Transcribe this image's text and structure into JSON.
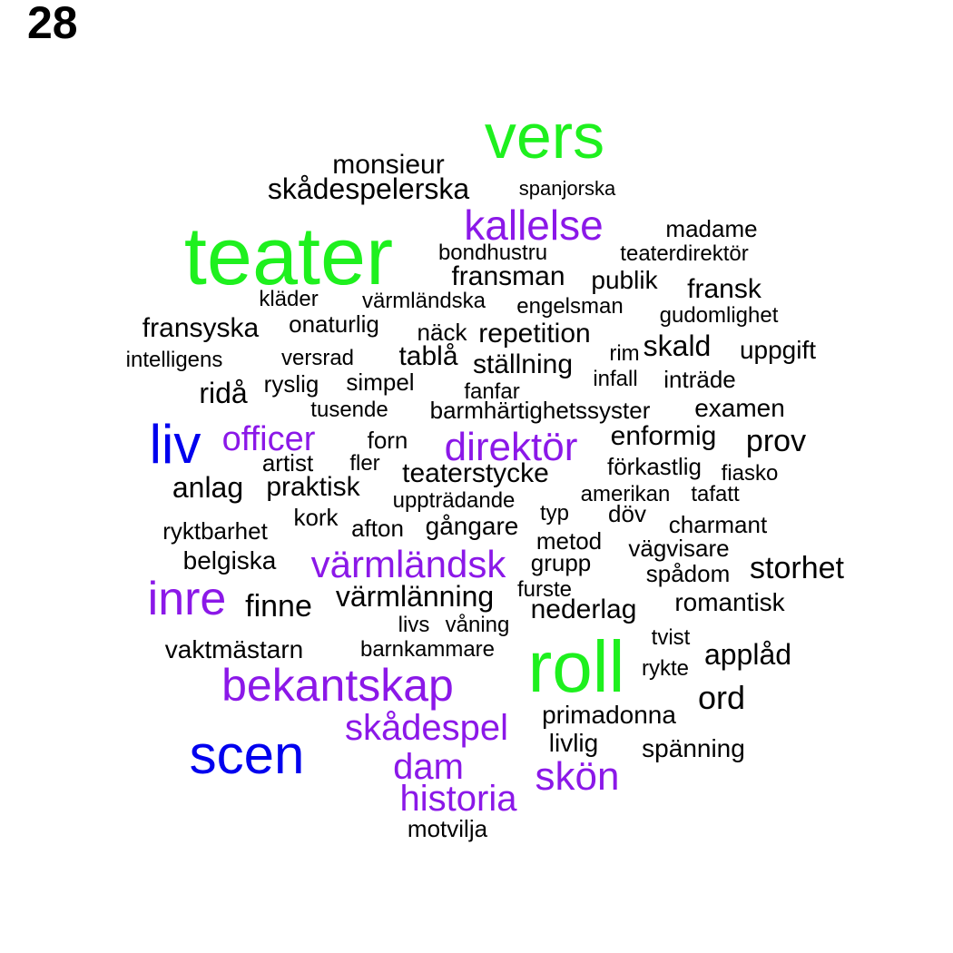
{
  "panel_number": "28",
  "colors": {
    "tier1": "#1ef01e",
    "tier2": "#0000ee",
    "tier3": "#8b18e8",
    "tier4": "#000000"
  },
  "words": [
    {
      "text": "vers",
      "tier": 1
    },
    {
      "text": "teater",
      "tier": 1
    },
    {
      "text": "roll",
      "tier": 1
    },
    {
      "text": "liv",
      "tier": 2
    },
    {
      "text": "scen",
      "tier": 2
    },
    {
      "text": "kallelse",
      "tier": 3
    },
    {
      "text": "officer",
      "tier": 3
    },
    {
      "text": "direktör",
      "tier": 3
    },
    {
      "text": "värmländsk",
      "tier": 3
    },
    {
      "text": "inre",
      "tier": 3
    },
    {
      "text": "bekantskap",
      "tier": 3
    },
    {
      "text": "skådespel",
      "tier": 3
    },
    {
      "text": "dam",
      "tier": 3
    },
    {
      "text": "skön",
      "tier": 3
    },
    {
      "text": "historia",
      "tier": 3
    },
    {
      "text": "monsieur",
      "tier": 4
    },
    {
      "text": "skådespelerska",
      "tier": 4
    },
    {
      "text": "spanjorska",
      "tier": 4
    },
    {
      "text": "madame",
      "tier": 4
    },
    {
      "text": "bondhustru",
      "tier": 4
    },
    {
      "text": "teaterdirektör",
      "tier": 4
    },
    {
      "text": "fransman",
      "tier": 4
    },
    {
      "text": "publik",
      "tier": 4
    },
    {
      "text": "fransk",
      "tier": 4
    },
    {
      "text": "kläder",
      "tier": 4
    },
    {
      "text": "värmländska",
      "tier": 4
    },
    {
      "text": "engelsman",
      "tier": 4
    },
    {
      "text": "gudomlighet",
      "tier": 4
    },
    {
      "text": "fransyska",
      "tier": 4
    },
    {
      "text": "onaturlig",
      "tier": 4
    },
    {
      "text": "näck",
      "tier": 4
    },
    {
      "text": "repetition",
      "tier": 4
    },
    {
      "text": "skald",
      "tier": 4
    },
    {
      "text": "uppgift",
      "tier": 4
    },
    {
      "text": "intelligens",
      "tier": 4
    },
    {
      "text": "versrad",
      "tier": 4
    },
    {
      "text": "tablå",
      "tier": 4
    },
    {
      "text": "ställning",
      "tier": 4
    },
    {
      "text": "rim",
      "tier": 4
    },
    {
      "text": "infall",
      "tier": 4
    },
    {
      "text": "inträde",
      "tier": 4
    },
    {
      "text": "ridå",
      "tier": 4
    },
    {
      "text": "ryslig",
      "tier": 4
    },
    {
      "text": "simpel",
      "tier": 4
    },
    {
      "text": "fanfar",
      "tier": 4
    },
    {
      "text": "tusende",
      "tier": 4
    },
    {
      "text": "barmhärtighetssyster",
      "tier": 4
    },
    {
      "text": "examen",
      "tier": 4
    },
    {
      "text": "forn",
      "tier": 4
    },
    {
      "text": "enformig",
      "tier": 4
    },
    {
      "text": "prov",
      "tier": 4
    },
    {
      "text": "artist",
      "tier": 4
    },
    {
      "text": "fler",
      "tier": 4
    },
    {
      "text": "teaterstycke",
      "tier": 4
    },
    {
      "text": "förkastlig",
      "tier": 4
    },
    {
      "text": "fiasko",
      "tier": 4
    },
    {
      "text": "anlag",
      "tier": 4
    },
    {
      "text": "praktisk",
      "tier": 4
    },
    {
      "text": "uppträdande",
      "tier": 4
    },
    {
      "text": "amerikan",
      "tier": 4
    },
    {
      "text": "tafatt",
      "tier": 4
    },
    {
      "text": "kork",
      "tier": 4
    },
    {
      "text": "typ",
      "tier": 4
    },
    {
      "text": "döv",
      "tier": 4
    },
    {
      "text": "ryktbarhet",
      "tier": 4
    },
    {
      "text": "afton",
      "tier": 4
    },
    {
      "text": "gångare",
      "tier": 4
    },
    {
      "text": "charmant",
      "tier": 4
    },
    {
      "text": "metod",
      "tier": 4
    },
    {
      "text": "vägvisare",
      "tier": 4
    },
    {
      "text": "belgiska",
      "tier": 4
    },
    {
      "text": "grupp",
      "tier": 4
    },
    {
      "text": "spådom",
      "tier": 4
    },
    {
      "text": "storhet",
      "tier": 4
    },
    {
      "text": "furste",
      "tier": 4
    },
    {
      "text": "finne",
      "tier": 4
    },
    {
      "text": "värmlänning",
      "tier": 4
    },
    {
      "text": "romantisk",
      "tier": 4
    },
    {
      "text": "nederlag",
      "tier": 4
    },
    {
      "text": "livs",
      "tier": 4
    },
    {
      "text": "våning",
      "tier": 4
    },
    {
      "text": "tvist",
      "tier": 4
    },
    {
      "text": "vaktmästarn",
      "tier": 4
    },
    {
      "text": "barnkammare",
      "tier": 4
    },
    {
      "text": "applåd",
      "tier": 4
    },
    {
      "text": "rykte",
      "tier": 4
    },
    {
      "text": "ord",
      "tier": 4
    },
    {
      "text": "primadonna",
      "tier": 4
    },
    {
      "text": "livlig",
      "tier": 4
    },
    {
      "text": "spänning",
      "tier": 4
    },
    {
      "text": "motvilja",
      "tier": 4
    }
  ]
}
